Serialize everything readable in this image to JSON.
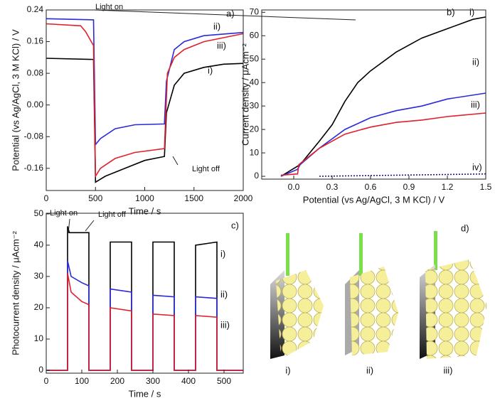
{
  "chart_data": [
    {
      "type": "line",
      "panel": "a)",
      "xlabel": "Time / s",
      "ylabel": "Potential (vs Ag/AgCl, 3 M KCl) / V",
      "xlim": [
        0,
        2000
      ],
      "xticks": [
        0,
        500,
        1000,
        1500,
        2000
      ],
      "ylim": [
        -0.216,
        0.24
      ],
      "yticks": [
        0.24,
        0.16,
        0.08,
        {
          "value": 0,
          "label": "0.00"
        },
        -0.08,
        -0.16
      ],
      "annotations": [
        "Light on",
        "Light off"
      ],
      "series": [
        {
          "name": "i)",
          "color": "#000000",
          "x": [
            0,
            480,
            500,
            600,
            800,
            1000,
            1200,
            1220,
            1300,
            1400,
            1600,
            1800,
            2000
          ],
          "values": [
            0.118,
            0.115,
            -0.195,
            -0.18,
            -0.16,
            -0.14,
            -0.13,
            -0.02,
            0.05,
            0.08,
            0.095,
            0.103,
            0.105
          ]
        },
        {
          "name": "ii)",
          "color": "#2a2ad8",
          "x": [
            0,
            480,
            500,
            550,
            700,
            900,
            1200,
            1220,
            1300,
            1400,
            1600,
            2000
          ],
          "values": [
            0.218,
            0.215,
            -0.1,
            -0.085,
            -0.06,
            -0.05,
            -0.048,
            0.06,
            0.14,
            0.16,
            0.175,
            0.183
          ]
        },
        {
          "name": "iii)",
          "color": "#e0202a",
          "x": [
            0,
            350,
            400,
            480,
            500,
            550,
            700,
            900,
            1200,
            1230,
            1300,
            1400,
            1600,
            2000
          ],
          "values": [
            0.205,
            0.2,
            0.185,
            0.15,
            -0.18,
            -0.16,
            -0.135,
            -0.12,
            -0.11,
            0.08,
            0.12,
            0.14,
            0.16,
            0.18
          ]
        }
      ]
    },
    {
      "type": "line",
      "panel": "b)",
      "xlabel": "Potential (vs Ag/AgCl, 3 M KCl) / V",
      "ylabel": "Current density / μAcm⁻²",
      "xlim": [
        -0.25,
        1.5
      ],
      "xticks": [
        {
          "value": 0,
          "label": "0.0"
        },
        0.3,
        0.6,
        0.9,
        1.2,
        1.5
      ],
      "ylim": [
        -1.2,
        71
      ],
      "yticks": [
        0,
        10,
        20,
        30,
        40,
        50,
        60,
        70
      ],
      "series": [
        {
          "name": "i)",
          "color": "#000000",
          "x": [
            -0.1,
            0.05,
            0.2,
            0.3,
            0.4,
            0.5,
            0.6,
            0.8,
            1.0,
            1.2,
            1.4,
            1.5
          ],
          "values": [
            0,
            5,
            15,
            22,
            32,
            40,
            45,
            53,
            59,
            63,
            67,
            68
          ]
        },
        {
          "name": "ii)",
          "color": "#2a2ad8",
          "x": [
            -0.1,
            0.03,
            0.05,
            0.2,
            0.4,
            0.6,
            0.8,
            1.0,
            1.2,
            1.5
          ],
          "values": [
            0,
            3,
            5,
            12,
            20,
            25,
            28,
            30,
            33,
            35.5
          ]
        },
        {
          "name": "iii)",
          "color": "#e0202a",
          "x": [
            -0.1,
            0.03,
            0.04,
            0.2,
            0.4,
            0.6,
            0.8,
            1.0,
            1.2,
            1.5
          ],
          "values": [
            0.5,
            1,
            5,
            12,
            18,
            21,
            23,
            24,
            25.5,
            27
          ]
        },
        {
          "name": "iv)",
          "color": "#1a1a80",
          "dashed": true,
          "x": [
            0.2,
            1.5
          ],
          "values": [
            0,
            1
          ]
        }
      ]
    },
    {
      "type": "line",
      "panel": "c)",
      "xlabel": "Time / s",
      "ylabel": "Photocurrent density / μAcm⁻²",
      "xlim": [
        0,
        554
      ],
      "xticks": [
        0,
        100,
        200,
        300,
        400,
        500
      ],
      "ylim": [
        -0.9,
        50.2
      ],
      "yticks": [
        0,
        10,
        20,
        30,
        40,
        50
      ],
      "annotations": [
        "Light on",
        "Light off"
      ],
      "series": [
        {
          "name": "i)",
          "color": "#000000",
          "x": [
            0,
            60,
            60,
            65,
            120,
            120,
            180,
            180,
            240,
            240,
            300,
            300,
            360,
            360,
            420,
            420,
            480,
            480,
            554
          ],
          "values": [
            0,
            0,
            46,
            44,
            44,
            0,
            0,
            41,
            41,
            0,
            0,
            41,
            41,
            0,
            0,
            40,
            41,
            0,
            0
          ]
        },
        {
          "name": "ii)",
          "color": "#2a2ad8",
          "x": [
            0,
            60,
            60,
            70,
            100,
            120,
            120,
            180,
            180,
            240,
            240,
            300,
            300,
            360,
            360,
            420,
            420,
            480,
            480,
            554
          ],
          "values": [
            0,
            0,
            35,
            30,
            28,
            27,
            0,
            0,
            26,
            25,
            0,
            0,
            24,
            23.5,
            0,
            0,
            23.5,
            23,
            0,
            0
          ]
        },
        {
          "name": "iii)",
          "color": "#e0202a",
          "x": [
            0,
            60,
            60,
            70,
            100,
            120,
            120,
            180,
            180,
            240,
            240,
            300,
            300,
            360,
            360,
            420,
            420,
            480,
            480,
            554
          ],
          "values": [
            0,
            0,
            31,
            25,
            22,
            21,
            0,
            0,
            20,
            19,
            0,
            0,
            18,
            17.5,
            0,
            0,
            17.5,
            17,
            0,
            0
          ]
        }
      ]
    }
  ],
  "illustration": {
    "panel": "d)",
    "captions": [
      "i)",
      "ii)",
      "iii)"
    ]
  }
}
